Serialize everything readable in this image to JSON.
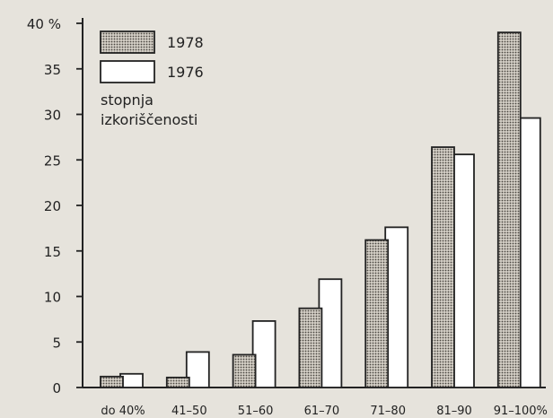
{
  "chart_data": {
    "type": "bar",
    "categories": [
      "do 40%",
      "41–50",
      "51–60",
      "61–70",
      "71–80",
      "81–90",
      "91–100%"
    ],
    "series": [
      {
        "name": "1978",
        "values": [
          1.2,
          1.1,
          3.6,
          8.7,
          16.2,
          26.4,
          39.0
        ]
      },
      {
        "name": "1976",
        "values": [
          1.5,
          3.9,
          7.3,
          11.9,
          17.6,
          25.6,
          29.6
        ]
      }
    ],
    "ylim": [
      0,
      40
    ],
    "yticks": [
      0,
      5,
      10,
      15,
      20,
      25,
      30,
      35,
      40
    ],
    "ytick_labels": [
      "0",
      "5",
      "10",
      "15",
      "20",
      "25",
      "30",
      "35",
      "40 %"
    ],
    "legend_title": "stopnja izkoriščenosti",
    "legend_title_lines": [
      "stopnja",
      "izkoriščenosti"
    ],
    "legend_position": "top-left",
    "grid": false,
    "colors": {
      "1978": "#c9c4bb",
      "1976": "#ffffff",
      "axis": "#222222",
      "background": "#e6e3dc"
    }
  }
}
